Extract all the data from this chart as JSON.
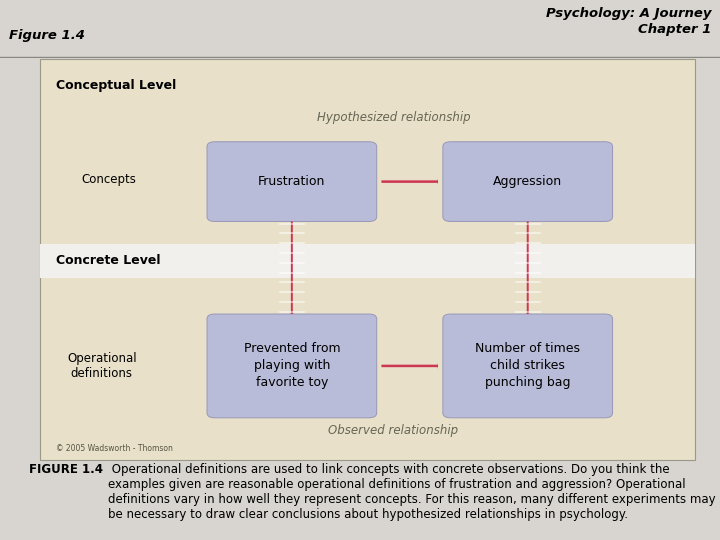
{
  "title_right": "Psychology: A Journey\nChapter 1",
  "title_left": "Figure 1.4",
  "bg_color": "#e8e0c8",
  "box_color": "#b8bcd8",
  "white_band_color": "#f2f0ec",
  "top_section_label": "Conceptual Level",
  "bottom_section_label": "Concrete Level",
  "top_left_box": "Frustration",
  "top_right_box": "Aggression",
  "bottom_left_box": "Prevented from\nplaying with\nfavorite toy",
  "bottom_right_box": "Number of times\nchild strikes\npunching bag",
  "left_label_top": "Concepts",
  "left_label_bottom": "Operational\ndefinitions",
  "top_arc_label": "Hypothesized relationship",
  "bottom_arc_label": "Observed relationship",
  "copyright": "© 2005 Wadsworth - Thomson",
  "caption_bold": "FIGURE 1.4",
  "caption_text": " Operational definitions are used to link concepts with concrete observations. Do you think the examples given are reasonable operational definitions of frustration and aggression? Operational definitions vary in how well they represent concepts. For this reason, many different experiments may be necessary to draw clear conclusions about hypothesized relationships in psychology.",
  "arrow_color": "#cc2244",
  "header_bg": "#d4d0cc",
  "figure_bg": "#d8d5d0",
  "box_edge_color": "#9898b8"
}
